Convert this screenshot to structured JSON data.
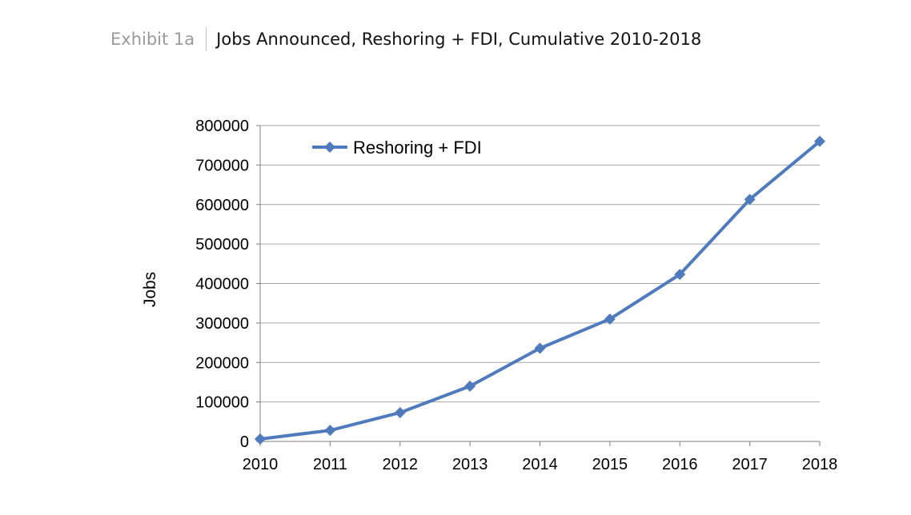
{
  "header": {
    "exhibit_label": "Exhibit 1a",
    "title": "Jobs Announced, Reshoring + FDI, Cumulative 2010-2018"
  },
  "chart_data": {
    "type": "line",
    "categories": [
      "2010",
      "2011",
      "2012",
      "2013",
      "2014",
      "2015",
      "2016",
      "2017",
      "2018"
    ],
    "series": [
      {
        "name": "Reshoring + FDI",
        "color": "#4f7bbd",
        "marker": "diamond",
        "values": [
          6000,
          28000,
          73000,
          140000,
          236000,
          310000,
          423000,
          613000,
          760000
        ]
      }
    ],
    "ylabel": "Jobs",
    "xlabel": "",
    "ylim": [
      0,
      800000
    ],
    "yticks": [
      "0",
      "100000",
      "200000",
      "300000",
      "400000",
      "500000",
      "600000",
      "700000",
      "800000"
    ],
    "grid": true,
    "legend_position": "top-left"
  }
}
